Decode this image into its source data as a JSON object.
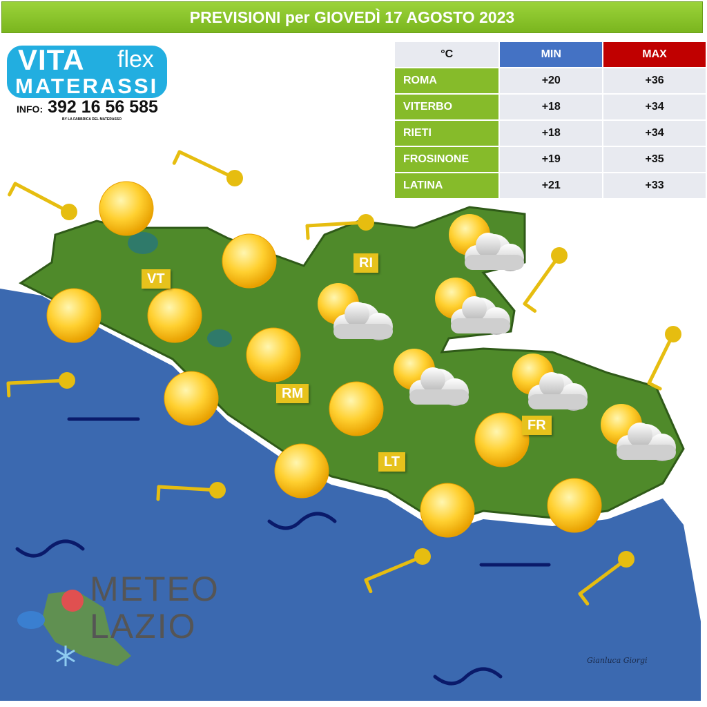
{
  "title": "PREVISIONI per GIOVEDÌ 17 AGOSTO 2023",
  "logo": {
    "vita": "VITA",
    "flex": "flex",
    "materassi": "MATERASSI",
    "info_label": "INFO:",
    "phone": "392 16 56 585",
    "tagline": "BY LA FABBRICA DEL MATERASSO"
  },
  "table": {
    "unit": "°C",
    "min_label": "MIN",
    "max_label": "MAX",
    "rows": [
      {
        "city": "ROMA",
        "min": "+20",
        "max": "+36"
      },
      {
        "city": "VITERBO",
        "min": "+18",
        "max": "+34"
      },
      {
        "city": "RIETI",
        "min": "+18",
        "max": "+34"
      },
      {
        "city": "FROSINONE",
        "min": "+19",
        "max": "+35"
      },
      {
        "city": "LATINA",
        "min": "+21",
        "max": "+33"
      }
    ]
  },
  "labels": {
    "vt": "VT",
    "ri": "RI",
    "rm": "RM",
    "lt": "LT",
    "fr": "FR"
  },
  "icons": {
    "sun": "sun-icon",
    "partly_cloudy": "sun-behind-cloud-icon",
    "wind": "wind-barb-icon",
    "sea_calm": "calm-sea-icon",
    "sea_slight": "slight-sea-wave-icon"
  },
  "colors": {
    "title_bar": "#86bb2a",
    "sea": "#3b69b0",
    "land": "#4f8a2a",
    "label": "#e6c21c",
    "min": "#4472c4",
    "max": "#c00000"
  },
  "watermark": {
    "line1": "METEO",
    "line2": "LAZIO"
  },
  "signature": "Gianluca Giorgi"
}
